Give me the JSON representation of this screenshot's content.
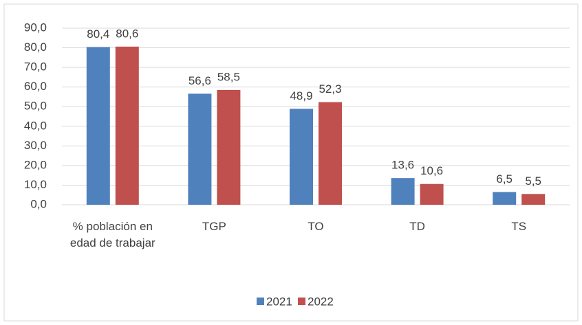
{
  "chart_data": {
    "type": "bar",
    "categories": [
      "% población en edad de trabajar",
      "TGP",
      "TO",
      "TD",
      "TS"
    ],
    "series": [
      {
        "name": "2021",
        "color": "#4f81bd",
        "values": [
          80.4,
          56.6,
          48.9,
          13.6,
          6.5
        ],
        "value_labels": [
          "80,4",
          "56,6",
          "48,9",
          "13,6",
          "6,5"
        ]
      },
      {
        "name": "2022",
        "color": "#c0504d",
        "values": [
          80.6,
          58.5,
          52.3,
          10.6,
          5.5
        ],
        "value_labels": [
          "80,6",
          "58,5",
          "52,3",
          "10,6",
          "5,5"
        ]
      }
    ],
    "ylim": [
      0,
      90
    ],
    "yticks": [
      {
        "value": 0,
        "label": "0,0"
      },
      {
        "value": 10,
        "label": "10,0"
      },
      {
        "value": 20,
        "label": "20,0"
      },
      {
        "value": 30,
        "label": "30,0"
      },
      {
        "value": 40,
        "label": "40,0"
      },
      {
        "value": 50,
        "label": "50,0"
      },
      {
        "value": 60,
        "label": "60,0"
      },
      {
        "value": 70,
        "label": "70,0"
      },
      {
        "value": 80,
        "label": "80,0"
      },
      {
        "value": 90,
        "label": "90,0"
      }
    ],
    "grid": true,
    "legend": "bottom"
  }
}
